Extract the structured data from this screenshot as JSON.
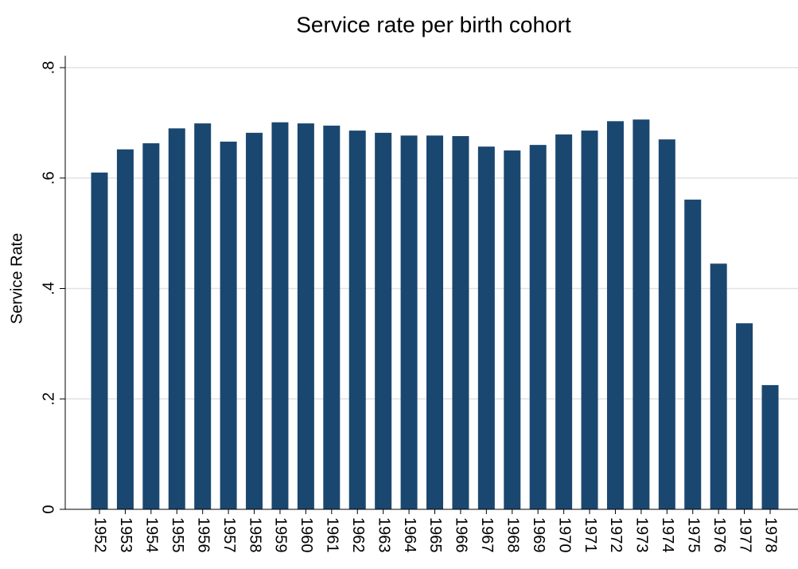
{
  "chart_data": {
    "type": "bar",
    "title": "Service rate per birth cohort",
    "y_label": "Service Rate",
    "categories": [
      "1952",
      "1953",
      "1954",
      "1955",
      "1956",
      "1957",
      "1958",
      "1959",
      "1960",
      "1961",
      "1962",
      "1963",
      "1964",
      "1965",
      "1966",
      "1967",
      "1968",
      "1969",
      "1970",
      "1971",
      "1972",
      "1973",
      "1974",
      "1975",
      "1976",
      "1977",
      "1978"
    ],
    "values": [
      0.61,
      0.652,
      0.663,
      0.69,
      0.699,
      0.666,
      0.682,
      0.701,
      0.699,
      0.695,
      0.686,
      0.682,
      0.677,
      0.677,
      0.676,
      0.657,
      0.65,
      0.66,
      0.679,
      0.686,
      0.703,
      0.706,
      0.67,
      0.561,
      0.445,
      0.337,
      0.225
    ],
    "color": "#1a476f",
    "ylim": [
      0,
      0.8
    ],
    "yticks": [
      0,
      {
        "value": 0.2,
        "label": ".2"
      },
      {
        "value": 0.4,
        "label": ".4"
      },
      {
        "value": 0.6,
        "label": ".6"
      },
      {
        "value": 0.8,
        "label": ".8"
      }
    ],
    "grid": true
  }
}
